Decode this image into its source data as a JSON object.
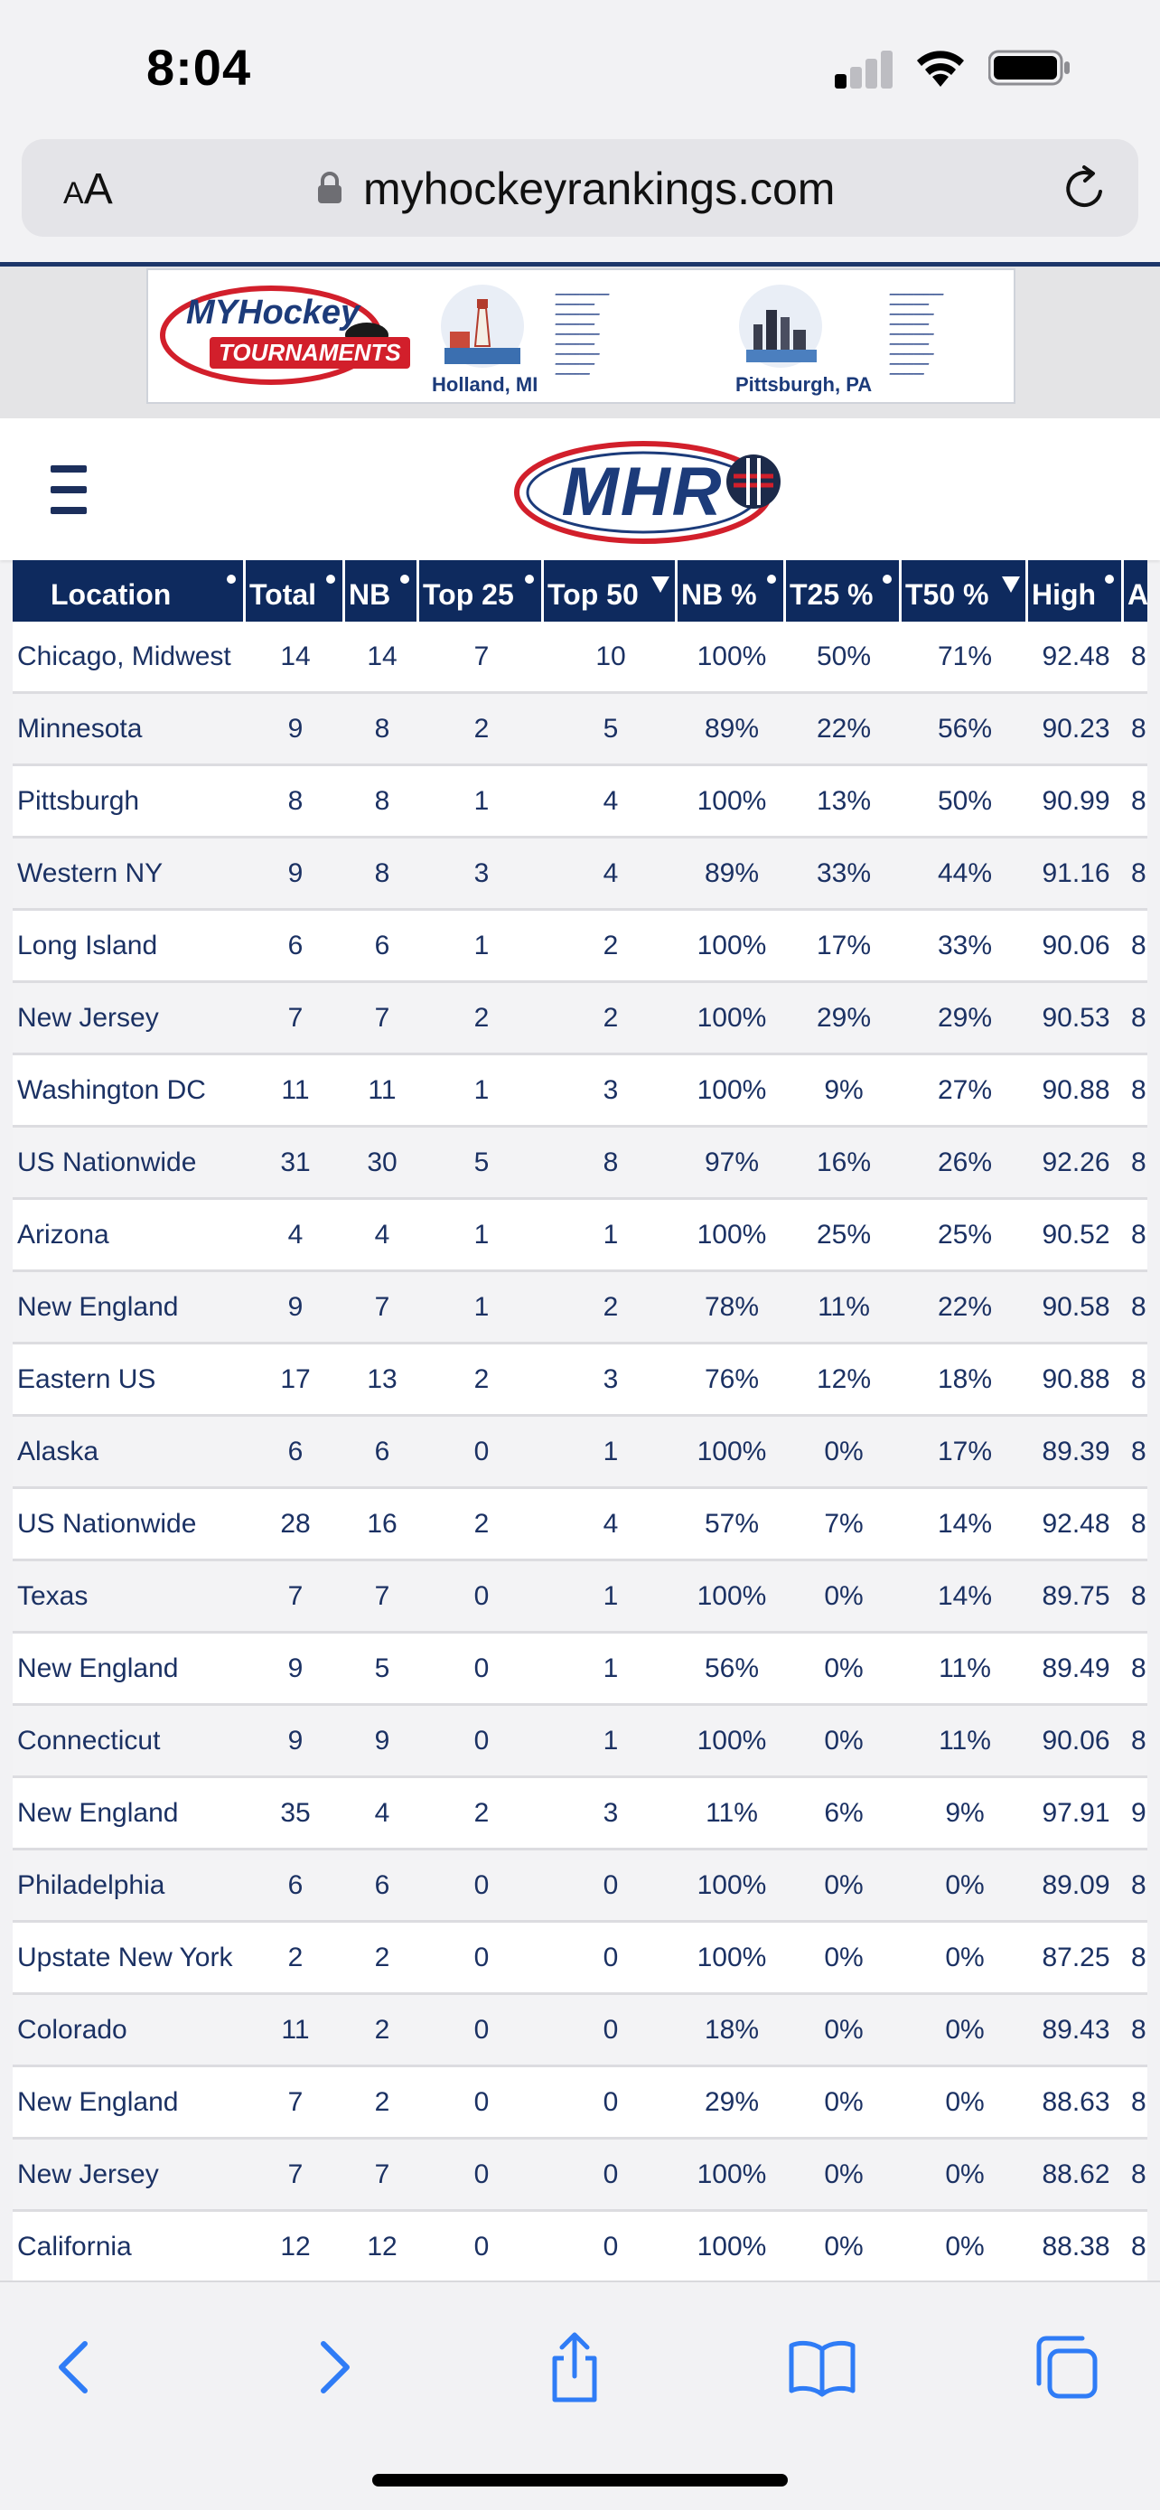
{
  "status_bar": {
    "time": "8:04"
  },
  "browser": {
    "aa_label_small": "A",
    "aa_label_large": "A",
    "url": "myhockeyrankings.com"
  },
  "ad": {
    "brand_line1": "MYHockey",
    "brand_line2": "TOURNAMENTS",
    "venues": [
      "Holland, MI",
      "Pittsburgh, PA"
    ]
  },
  "site": {
    "logo_text": "MHR"
  },
  "table": {
    "headers": [
      "Location",
      "Total",
      "NB",
      "Top 25",
      "Top 50",
      "NB %",
      "T25 %",
      "T50 %",
      "High",
      "A"
    ],
    "rows": [
      [
        "Chicago, Midwest",
        "14",
        "14",
        "7",
        "10",
        "100%",
        "50%",
        "71%",
        "92.48",
        "8"
      ],
      [
        "Minnesota",
        "9",
        "8",
        "2",
        "5",
        "89%",
        "22%",
        "56%",
        "90.23",
        "8"
      ],
      [
        "Pittsburgh",
        "8",
        "8",
        "1",
        "4",
        "100%",
        "13%",
        "50%",
        "90.99",
        "8"
      ],
      [
        "Western NY",
        "9",
        "8",
        "3",
        "4",
        "89%",
        "33%",
        "44%",
        "91.16",
        "8"
      ],
      [
        "Long Island",
        "6",
        "6",
        "1",
        "2",
        "100%",
        "17%",
        "33%",
        "90.06",
        "8"
      ],
      [
        "New Jersey",
        "7",
        "7",
        "2",
        "2",
        "100%",
        "29%",
        "29%",
        "90.53",
        "8"
      ],
      [
        "Washington DC",
        "11",
        "11",
        "1",
        "3",
        "100%",
        "9%",
        "27%",
        "90.88",
        "8"
      ],
      [
        "US Nationwide",
        "31",
        "30",
        "5",
        "8",
        "97%",
        "16%",
        "26%",
        "92.26",
        "8"
      ],
      [
        "Arizona",
        "4",
        "4",
        "1",
        "1",
        "100%",
        "25%",
        "25%",
        "90.52",
        "8"
      ],
      [
        "New England",
        "9",
        "7",
        "1",
        "2",
        "78%",
        "11%",
        "22%",
        "90.58",
        "8"
      ],
      [
        "Eastern US",
        "17",
        "13",
        "2",
        "3",
        "76%",
        "12%",
        "18%",
        "90.88",
        "8"
      ],
      [
        "Alaska",
        "6",
        "6",
        "0",
        "1",
        "100%",
        "0%",
        "17%",
        "89.39",
        "8"
      ],
      [
        "US Nationwide",
        "28",
        "16",
        "2",
        "4",
        "57%",
        "7%",
        "14%",
        "92.48",
        "8"
      ],
      [
        "Texas",
        "7",
        "7",
        "0",
        "1",
        "100%",
        "0%",
        "14%",
        "89.75",
        "8"
      ],
      [
        "New England",
        "9",
        "5",
        "0",
        "1",
        "56%",
        "0%",
        "11%",
        "89.49",
        "8"
      ],
      [
        "Connecticut",
        "9",
        "9",
        "0",
        "1",
        "100%",
        "0%",
        "11%",
        "90.06",
        "8"
      ],
      [
        "New England",
        "35",
        "4",
        "2",
        "3",
        "11%",
        "6%",
        "9%",
        "97.91",
        "9"
      ],
      [
        "Philadelphia",
        "6",
        "6",
        "0",
        "0",
        "100%",
        "0%",
        "0%",
        "89.09",
        "8"
      ],
      [
        "Upstate New York",
        "2",
        "2",
        "0",
        "0",
        "100%",
        "0%",
        "0%",
        "87.25",
        "8"
      ],
      [
        "Colorado",
        "11",
        "2",
        "0",
        "0",
        "18%",
        "0%",
        "0%",
        "89.43",
        "8"
      ],
      [
        "New England",
        "7",
        "2",
        "0",
        "0",
        "29%",
        "0%",
        "0%",
        "88.63",
        "8"
      ],
      [
        "New Jersey",
        "7",
        "7",
        "0",
        "0",
        "100%",
        "0%",
        "0%",
        "88.62",
        "8"
      ],
      [
        "California",
        "12",
        "12",
        "0",
        "0",
        "100%",
        "0%",
        "0%",
        "88.38",
        "8"
      ]
    ]
  },
  "toolbar": {
    "icons": [
      "back-chevron-icon",
      "forward-chevron-icon",
      "share-icon",
      "bookmarks-book-icon",
      "tabs-icon"
    ]
  },
  "colors": {
    "navy": "#0e2a5e",
    "table_text": "#1b3163",
    "ios_blue": "#2f7cf6",
    "mhr_red": "#d21f2b"
  }
}
